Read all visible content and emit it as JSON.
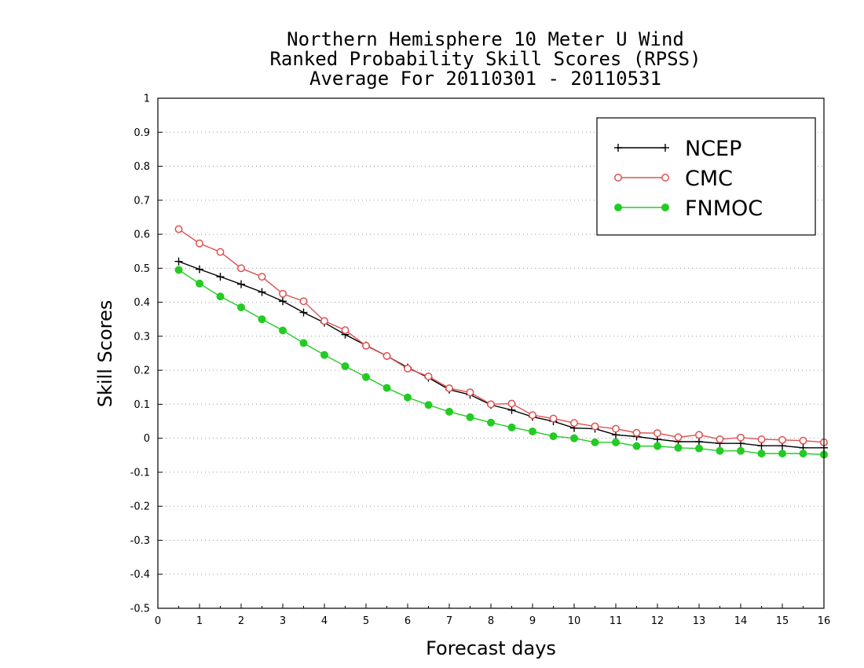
{
  "chart_data": {
    "type": "line",
    "title_lines": [
      "Northern Hemisphere 10 Meter U Wind",
      "Ranked Probability Skill Scores (RPSS)",
      "Average For 20110301 - 20110531"
    ],
    "xlabel": "Forecast days",
    "ylabel": "Skill Scores",
    "xlim": [
      0,
      16
    ],
    "ylim": [
      -0.5,
      1
    ],
    "x_ticks": [
      0,
      1,
      2,
      3,
      4,
      5,
      6,
      7,
      8,
      9,
      10,
      11,
      12,
      13,
      14,
      15,
      16
    ],
    "x_tick_labels": [
      "0",
      "1",
      "2",
      "3",
      "4",
      "5",
      "6",
      "7",
      "8",
      "9",
      "10",
      "11",
      "12",
      "13",
      "14",
      "15",
      "16"
    ],
    "y_ticks": [
      -0.5,
      -0.4,
      -0.3,
      -0.2,
      -0.1,
      0,
      0.1,
      0.2,
      0.3,
      0.4,
      0.5,
      0.6,
      0.7,
      0.8,
      0.9,
      1
    ],
    "y_tick_labels": [
      "-0.5",
      "-0.4",
      "-0.3",
      "-0.2",
      "-0.1",
      "0",
      "0.1",
      "0.2",
      "0.3",
      "0.4",
      "0.5",
      "0.6",
      "0.7",
      "0.8",
      "0.9",
      "1"
    ],
    "grid": "horizontal dotted",
    "legend_position": "top-right",
    "x": [
      0.5,
      1,
      1.5,
      2,
      2.5,
      3,
      3.5,
      4,
      4.5,
      5,
      5.5,
      6,
      6.5,
      7,
      7.5,
      8,
      8.5,
      9,
      9.5,
      10,
      10.5,
      11,
      11.5,
      12,
      12.5,
      13,
      13.5,
      14,
      14.5,
      15,
      15.5,
      16
    ],
    "series": [
      {
        "name": "NCEP",
        "color": "#000000",
        "marker": "plus",
        "values": [
          0.52,
          0.497,
          0.475,
          0.453,
          0.43,
          0.403,
          0.37,
          0.34,
          0.305,
          0.273,
          0.242,
          0.208,
          0.178,
          0.143,
          0.128,
          0.098,
          0.083,
          0.063,
          0.05,
          0.03,
          0.028,
          0.01,
          0.005,
          -0.003,
          -0.01,
          -0.01,
          -0.015,
          -0.015,
          -0.022,
          -0.022,
          -0.028,
          -0.028
        ]
      },
      {
        "name": "CMC",
        "color": "#e05050",
        "marker": "open-circle",
        "values": [
          0.615,
          0.573,
          0.548,
          0.5,
          0.475,
          0.425,
          0.403,
          0.345,
          0.318,
          0.272,
          0.242,
          0.205,
          0.182,
          0.147,
          0.135,
          0.1,
          0.102,
          0.068,
          0.058,
          0.045,
          0.035,
          0.028,
          0.016,
          0.015,
          0.003,
          0.01,
          -0.003,
          0.002,
          -0.003,
          -0.005,
          -0.007,
          -0.012
        ]
      },
      {
        "name": "FNMOC",
        "color": "#22cc22",
        "marker": "filled-circle",
        "values": [
          0.495,
          0.455,
          0.417,
          0.385,
          0.35,
          0.317,
          0.28,
          0.245,
          0.212,
          0.18,
          0.148,
          0.12,
          0.098,
          0.078,
          0.062,
          0.046,
          0.032,
          0.02,
          0.006,
          0.0,
          -0.012,
          -0.012,
          -0.023,
          -0.023,
          -0.028,
          -0.03,
          -0.037,
          -0.037,
          -0.045,
          -0.045,
          -0.045,
          -0.048
        ]
      }
    ]
  }
}
